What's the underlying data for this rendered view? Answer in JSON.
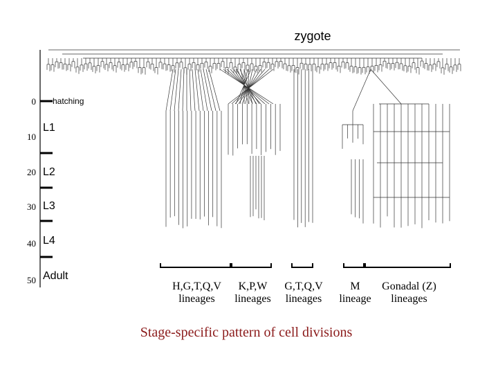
{
  "top_label": "zygote",
  "time_axis": {
    "ticks": [
      0,
      10,
      20,
      30,
      40,
      50
    ]
  },
  "stages": [
    "hatching",
    "L1",
    "L2",
    "L3",
    "L4",
    "Adult"
  ],
  "groups": [
    {
      "name": "H,G,T,Q,V",
      "subtitle": "lineages"
    },
    {
      "name": "K,P,W",
      "subtitle": "lineages"
    },
    {
      "name": "G,T,Q,V",
      "subtitle": "lineages"
    },
    {
      "name": "M",
      "subtitle": "lineage"
    },
    {
      "name": "Gonadal (Z)",
      "subtitle": "lineages"
    }
  ],
  "caption": "Stage-specific pattern of cell divisions"
}
